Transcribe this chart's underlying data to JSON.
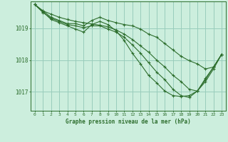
{
  "title": "Graphe pression niveau de la mer (hPa)",
  "background_color": "#cceedd",
  "grid_color": "#99ccbb",
  "line_color": "#2d6e2d",
  "marker_color": "#2d6e2d",
  "xlim": [
    -0.5,
    23.5
  ],
  "ylim": [
    1016.4,
    1019.85
  ],
  "yticks": [
    1017,
    1018,
    1019
  ],
  "xticks": [
    0,
    1,
    2,
    3,
    4,
    5,
    6,
    7,
    8,
    9,
    10,
    11,
    12,
    13,
    14,
    15,
    16,
    17,
    18,
    19,
    20,
    21,
    22,
    23
  ],
  "series": [
    [
      1019.75,
      1019.55,
      1019.45,
      1019.35,
      1019.28,
      1019.22,
      1019.18,
      1019.14,
      1019.1,
      1019.05,
      1018.95,
      1018.82,
      1018.65,
      1018.45,
      1018.25,
      1018.0,
      1017.78,
      1017.52,
      1017.32,
      1017.08,
      1017.02,
      1017.32,
      1017.72,
      1018.18
    ],
    [
      1019.75,
      1019.5,
      1019.32,
      1019.22,
      1019.12,
      1019.08,
      1019.02,
      1019.08,
      1019.08,
      1018.98,
      1018.88,
      1018.72,
      1018.48,
      1018.22,
      1017.92,
      1017.62,
      1017.38,
      1017.08,
      1016.88,
      1016.82,
      1017.02,
      1017.38,
      1017.78,
      1018.18
    ],
    [
      1019.75,
      1019.52,
      1019.28,
      1019.18,
      1019.08,
      1018.98,
      1018.88,
      1019.12,
      1019.22,
      1019.12,
      1018.92,
      1018.62,
      1018.22,
      1017.88,
      1017.52,
      1017.28,
      1017.02,
      1016.88,
      1016.85,
      1016.88,
      1017.02,
      1017.42,
      1017.78,
      1018.18
    ],
    [
      1019.75,
      1019.55,
      1019.35,
      1019.25,
      1019.15,
      1019.15,
      1019.08,
      1019.25,
      1019.35,
      1019.25,
      1019.18,
      1019.12,
      1019.08,
      1018.98,
      1018.82,
      1018.72,
      1018.52,
      1018.32,
      1018.12,
      1017.98,
      1017.88,
      1017.72,
      1017.78,
      1018.18
    ]
  ]
}
